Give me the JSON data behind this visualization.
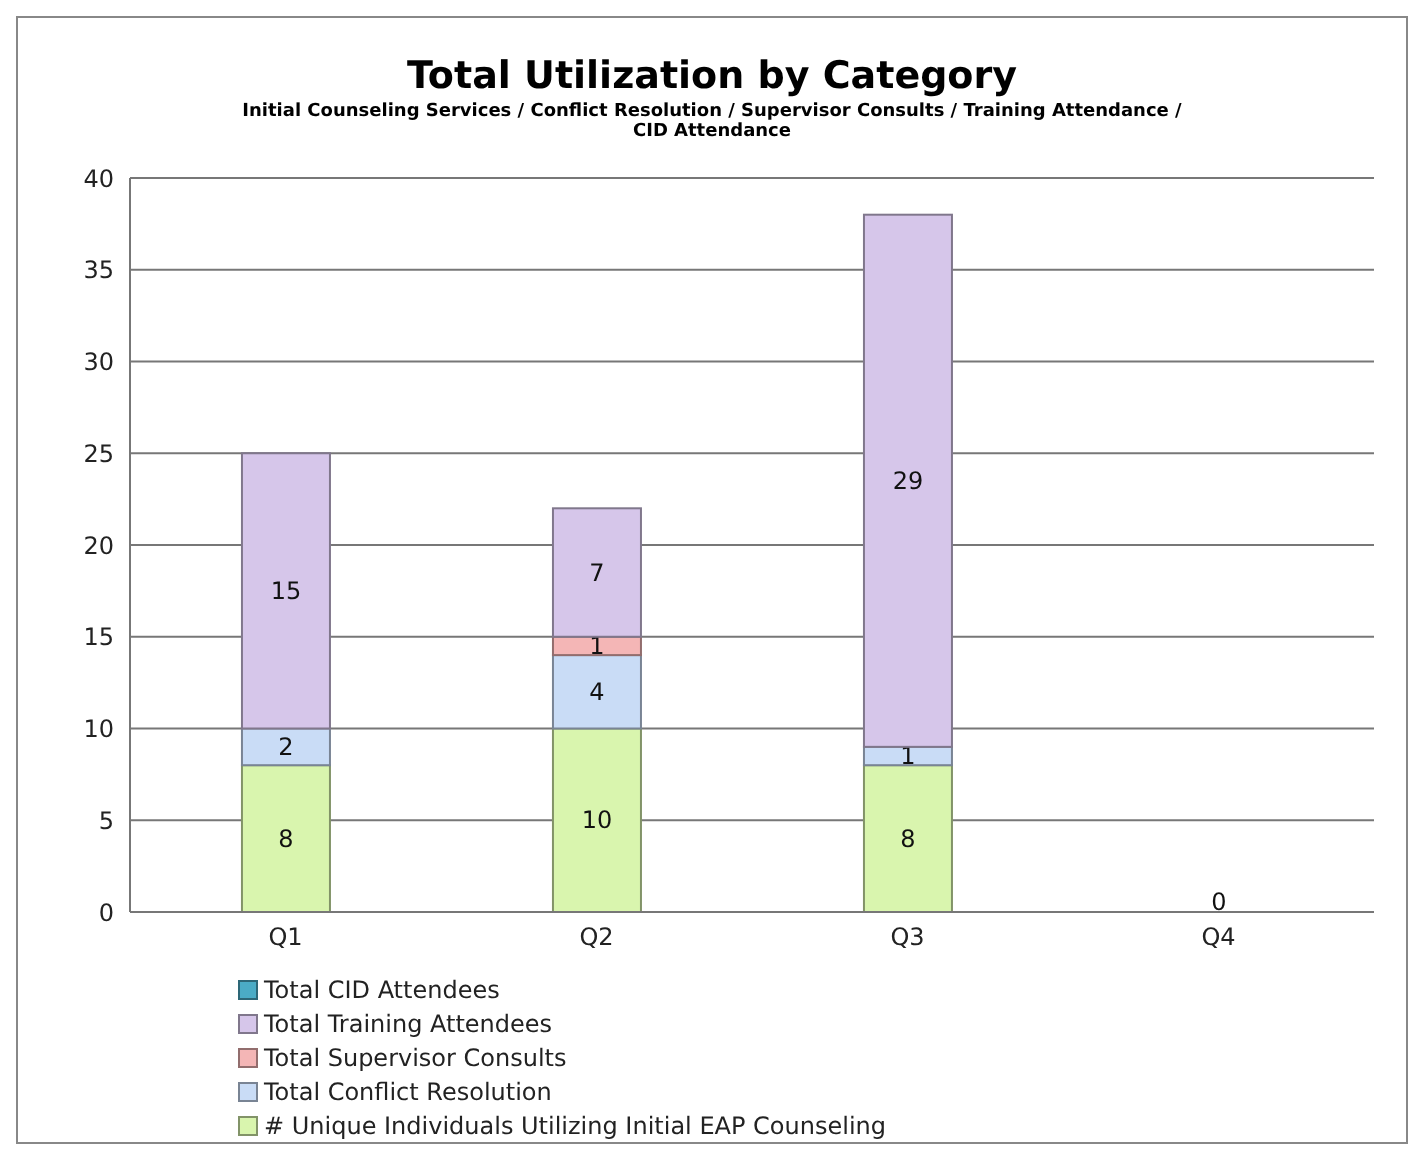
{
  "chart_data": {
    "type": "bar",
    "title": "Total Utilization by Category",
    "subtitle": "Initial Counseling Services / Conflict Resolution / Supervisor Consults / Training Attendance / CID Attendance",
    "categories": [
      "Q1",
      "Q2",
      "Q3",
      "Q4"
    ],
    "stacked": true,
    "series": [
      {
        "name": "# Unique Individuals Utilizing Initial EAP Counseling",
        "color": "#d9f5ae",
        "values": [
          8,
          10,
          8,
          0
        ]
      },
      {
        "name": "Total Conflict Resolution",
        "color": "#c9dcf6",
        "values": [
          2,
          4,
          1,
          null
        ]
      },
      {
        "name": "Total Supervisor Consults",
        "color": "#f4b6b6",
        "values": [
          null,
          1,
          null,
          null
        ]
      },
      {
        "name": "Total Training Attendees",
        "color": "#d6c6ea",
        "values": [
          15,
          7,
          29,
          null
        ]
      },
      {
        "name": "Total CID Attendees",
        "color": "#4bacc6",
        "values": [
          null,
          null,
          null,
          null
        ]
      }
    ],
    "ylim": [
      0,
      40
    ],
    "yticks": [
      0,
      5,
      10,
      15,
      20,
      25,
      30,
      35,
      40
    ],
    "grid": "y",
    "legend": "bottom left",
    "data_labels": true
  }
}
